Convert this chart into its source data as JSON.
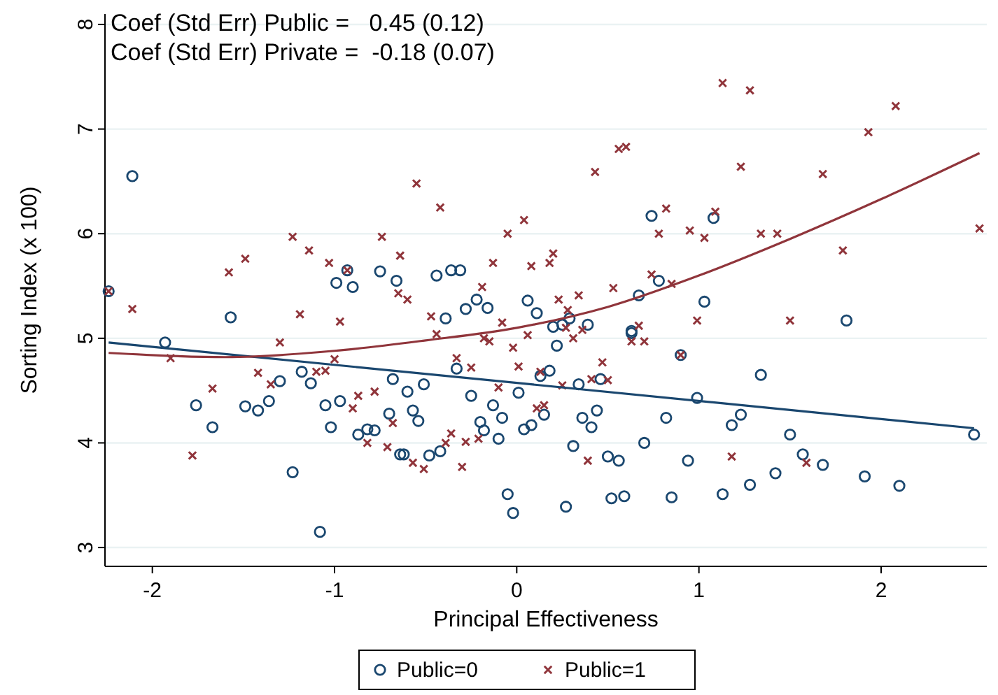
{
  "chart_data": {
    "type": "scatter",
    "xlabel": "Principal Effectiveness",
    "ylabel": "Sorting Index (x 100)",
    "annotations": [
      "Coef (Std Err) Public =   0.45 (0.12)",
      "Coef (Std Err) Private =  -0.18 (0.07)"
    ],
    "xlim": [
      -2.26,
      2.58
    ],
    "ylim": [
      2.82,
      8.1
    ],
    "xticks": [
      -2,
      -1,
      0,
      1,
      2
    ],
    "yticks": [
      3,
      4,
      5,
      6,
      7,
      8
    ],
    "grid": "y",
    "legend": "bottom",
    "series": [
      {
        "name": "Public=0",
        "color": "#1a476f",
        "marker": "circle",
        "x": [
          -2.11,
          -2.24,
          -1.57,
          -0.93,
          -0.99,
          -0.9,
          -0.75,
          -0.66,
          0.74,
          -0.44,
          -0.36,
          -0.31,
          -0.22,
          -0.28,
          -0.16,
          0.06,
          0.11,
          0.67,
          0.78,
          -0.39,
          0.2,
          0.25,
          0.29,
          0.39,
          0.63,
          1.08,
          1.03,
          1.81,
          -1.93,
          -1.76,
          -1.67,
          -1.3,
          -1.18,
          -1.13,
          -1.49,
          -1.42,
          -1.36,
          -1.05,
          -0.97,
          -0.68,
          -0.7,
          -1.02,
          -0.87,
          -0.82,
          -0.78,
          -0.64,
          -1.23,
          -1.08,
          0.22,
          0.63,
          0.9,
          -0.33,
          -0.6,
          -0.51,
          -0.25,
          0.01,
          0.13,
          0.18,
          0.34,
          0.46,
          -0.57,
          -0.54,
          -0.13,
          -0.2,
          -0.18,
          -0.08,
          -0.1,
          0.15,
          0.04,
          0.08,
          -0.62,
          -0.48,
          -0.42,
          0.36,
          0.44,
          0.41,
          0.31,
          0.5,
          0.56,
          0.7,
          0.82,
          0.94,
          -0.05,
          -0.02,
          0.27,
          0.52,
          0.59,
          0.85,
          0.99,
          1.34,
          1.18,
          1.23,
          1.5,
          2.51,
          1.57,
          1.68,
          1.13,
          1.28,
          1.42,
          1.91,
          2.1
        ],
        "values": [
          6.55,
          5.45,
          5.2,
          5.65,
          5.53,
          5.49,
          5.64,
          5.55,
          6.17,
          5.6,
          5.65,
          5.65,
          5.37,
          5.28,
          5.29,
          5.36,
          5.24,
          5.41,
          5.55,
          5.19,
          5.11,
          5.13,
          5.19,
          5.13,
          5.07,
          6.15,
          5.35,
          5.17,
          4.96,
          4.36,
          4.15,
          4.59,
          4.68,
          4.57,
          4.35,
          4.31,
          4.4,
          4.36,
          4.4,
          4.61,
          4.28,
          4.15,
          4.08,
          4.13,
          4.12,
          3.89,
          3.72,
          3.15,
          4.93,
          5.05,
          4.84,
          4.71,
          4.49,
          4.56,
          4.45,
          4.48,
          4.64,
          4.69,
          4.56,
          4.61,
          4.31,
          4.21,
          4.36,
          4.2,
          4.12,
          4.24,
          4.04,
          4.27,
          4.13,
          4.17,
          3.89,
          3.88,
          3.92,
          4.24,
          4.31,
          4.15,
          3.97,
          3.87,
          3.83,
          4.0,
          4.24,
          3.83,
          3.51,
          3.33,
          3.39,
          3.47,
          3.49,
          3.48,
          4.43,
          4.65,
          4.17,
          4.27,
          4.08,
          4.08,
          3.89,
          3.79,
          3.51,
          3.6,
          3.71,
          3.68,
          3.59
        ]
      },
      {
        "name": "Public=1",
        "color": "#90353b",
        "marker": "cross",
        "x": [
          -2.24,
          -2.11,
          -1.58,
          -1.49,
          -1.23,
          -1.14,
          -1.03,
          -0.93,
          -1.19,
          -0.97,
          -0.74,
          -0.65,
          -0.64,
          -0.55,
          -0.42,
          -0.05,
          0.04,
          0.43,
          0.56,
          0.6,
          0.82,
          0.78,
          0.95,
          -0.6,
          -0.13,
          0.08,
          0.18,
          0.2,
          -0.19,
          0.23,
          0.34,
          0.28,
          0.53,
          0.74,
          0.85,
          -0.47,
          -0.08,
          0.27,
          0.36,
          0.67,
          1.13,
          1.28,
          2.08,
          1.93,
          1.23,
          1.68,
          1.09,
          1.03,
          1.34,
          1.43,
          2.54,
          1.79,
          0.99,
          1.5,
          -1.9,
          -1.3,
          -1.67,
          -1.78,
          -1.42,
          -1.35,
          -1.1,
          -1.05,
          -1.0,
          -0.9,
          -0.87,
          -0.78,
          -0.68,
          -0.82,
          -0.71,
          -0.44,
          -0.18,
          -0.15,
          0.06,
          -0.02,
          0.31,
          0.63,
          0.7,
          0.9,
          -0.33,
          -0.25,
          0.01,
          0.13,
          -0.1,
          0.25,
          0.41,
          0.5,
          0.47,
          0.11,
          0.15,
          -0.36,
          -0.39,
          -0.28,
          -0.21,
          -0.57,
          -0.51,
          -0.3,
          0.39,
          1.18,
          1.59
        ],
        "values": [
          5.45,
          5.28,
          5.63,
          5.76,
          5.97,
          5.84,
          5.72,
          5.65,
          5.23,
          5.16,
          5.97,
          5.43,
          5.79,
          6.48,
          6.25,
          6.0,
          6.13,
          6.59,
          6.81,
          6.83,
          6.24,
          6.0,
          6.03,
          5.37,
          5.72,
          5.69,
          5.72,
          5.81,
          5.49,
          5.37,
          5.41,
          5.27,
          5.48,
          5.61,
          5.52,
          5.21,
          5.15,
          5.1,
          5.08,
          5.12,
          7.44,
          7.37,
          7.22,
          6.97,
          6.64,
          6.57,
          6.21,
          5.96,
          6.0,
          6.0,
          6.05,
          5.84,
          5.17,
          5.17,
          4.81,
          4.96,
          4.52,
          3.88,
          4.67,
          4.56,
          4.68,
          4.69,
          4.8,
          4.33,
          4.45,
          4.49,
          4.19,
          4.0,
          3.96,
          5.04,
          5.0,
          4.97,
          5.03,
          4.91,
          5.0,
          4.97,
          4.97,
          4.84,
          4.81,
          4.72,
          4.73,
          4.68,
          4.53,
          4.55,
          4.61,
          4.6,
          4.77,
          4.33,
          4.36,
          4.09,
          4.0,
          4.01,
          4.04,
          3.81,
          3.75,
          3.77,
          3.83,
          3.87,
          3.81
        ]
      },
      {
        "type": "line",
        "color": "#1a476f",
        "marker": "none",
        "x": [
          -2.24,
          2.51
        ],
        "values": [
          4.96,
          4.14
        ]
      },
      {
        "type": "line",
        "color": "#90353b",
        "marker": "none",
        "x": [
          -2.24,
          -1.6,
          -1.0,
          -0.5,
          0,
          0.5,
          1.0,
          1.5,
          2.0,
          2.54
        ],
        "values": [
          4.86,
          4.82,
          4.88,
          4.98,
          5.1,
          5.3,
          5.6,
          5.95,
          6.33,
          6.77
        ]
      }
    ]
  }
}
